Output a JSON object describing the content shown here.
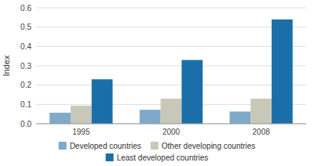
{
  "chart_data": {
    "type": "bar",
    "categories": [
      "1995",
      "2000",
      "2008"
    ],
    "series": [
      {
        "name": "Developed countries",
        "color": "#7fa8c9",
        "values": [
          0.057,
          0.072,
          0.063
        ]
      },
      {
        "name": "Other developing countries",
        "color": "#c8c8b8",
        "values": [
          0.093,
          0.13,
          0.13
        ]
      },
      {
        "name": "Least developed countries",
        "color": "#1a6fa8",
        "values": [
          0.23,
          0.33,
          0.54
        ]
      }
    ],
    "y_label": "Index",
    "ylim": [
      0,
      0.6
    ],
    "yticks": [
      {
        "value": 0,
        "label": "0.0"
      },
      0.1,
      0.2,
      0.3,
      0.4,
      0.5,
      0.6
    ],
    "grid": true,
    "legend": "bottom"
  }
}
